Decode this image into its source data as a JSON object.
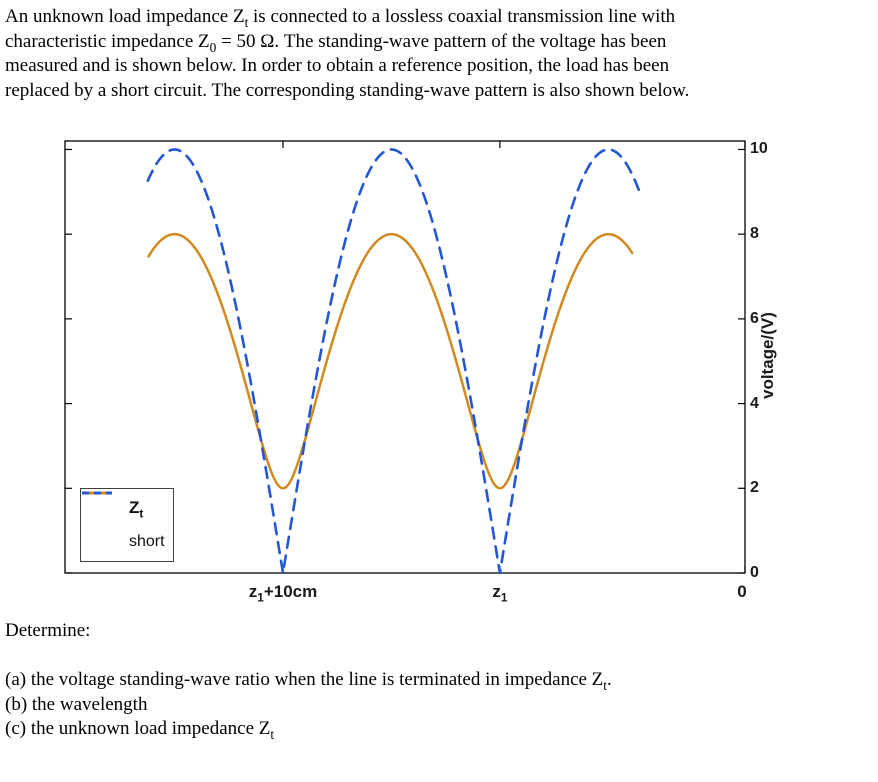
{
  "problem": {
    "intro_lines": [
      [
        {
          "t": "An unknown load impedance Z"
        },
        {
          "t": "t",
          "sub": true
        },
        {
          "t": " is connected to a lossless coaxial transmission line with"
        }
      ],
      [
        {
          "t": "characteristic impedance Z"
        },
        {
          "t": "0",
          "sub": true
        },
        {
          "t": " = 50 Ω. The standing-wave pattern of the voltage has been"
        }
      ],
      [
        {
          "t": "measured and is shown below. In order to obtain a reference position, the load has been"
        }
      ],
      [
        {
          "t": "replaced by a short circuit. The corresponding standing-wave pattern is also shown below."
        }
      ]
    ],
    "determine_label": "Determine:",
    "items": [
      [
        {
          "t": "(a) the voltage standing-wave ratio when the line is terminated in impedance Z"
        },
        {
          "t": "t",
          "sub": true
        },
        {
          "t": "."
        }
      ],
      [
        {
          "t": "(b) the wavelength"
        }
      ],
      [
        {
          "t": "(c) the unknown load impedance Z"
        },
        {
          "t": "t",
          "sub": true
        }
      ]
    ]
  },
  "chart_data": {
    "type": "line",
    "y_axis": {
      "label": "voltage/(V)",
      "side": "right",
      "min": 0,
      "max": 10.2,
      "ticks": [
        0,
        2,
        4,
        6,
        8,
        10
      ]
    },
    "x_axis": {
      "direction": "reversed",
      "min_cm": 0,
      "max_cm": 31.35,
      "ticks": [
        {
          "value_cm": 21.3,
          "label": [
            {
              "t": "z"
            },
            {
              "t": "1",
              "sub": true
            },
            {
              "t": "+10cm"
            }
          ]
        },
        {
          "value_cm": 11.3,
          "label": [
            {
              "t": "z"
            },
            {
              "t": "1",
              "sub": true
            }
          ]
        },
        {
          "value_cm": 0,
          "label": [
            {
              "t": "0"
            }
          ]
        }
      ]
    },
    "series": [
      {
        "name": "Z_t",
        "color": "#d18a1f",
        "style": "solid",
        "width": 2.5,
        "v_max": 8,
        "v_min": 2,
        "swr": 4,
        "max_at_cm": [
          6.3,
          16.3,
          26.3
        ],
        "min_at_cm": [
          11.3,
          21.3
        ],
        "d_range_cm": [
          5.2,
          27.5
        ],
        "model": {
          "kind": "standing_wave",
          "A": 5,
          "gamma": 0.6,
          "period_cm": 10,
          "min_ref_cm": 11.3
        }
      },
      {
        "name": "short",
        "color": "#2457d6",
        "style": "dashed",
        "width": 2.6,
        "dash": [
          11,
          8
        ],
        "v_max": 10,
        "v_min": 0,
        "max_at_cm": [
          6.3,
          16.3,
          26.3
        ],
        "null_at_cm": [
          11.3,
          21.3
        ],
        "d_range_cm": [
          4.9,
          27.6
        ],
        "model": {
          "kind": "abs_sin",
          "amplitude": 10,
          "half_period_cm": 10,
          "null_ref_cm": 11.3
        }
      }
    ],
    "legend": {
      "position": "bottom-left",
      "entries": [
        {
          "label": [
            {
              "t": "Z"
            },
            {
              "t": "t",
              "sub": true
            }
          ]
        },
        {
          "label": [
            {
              "t": "short"
            }
          ]
        }
      ]
    }
  }
}
